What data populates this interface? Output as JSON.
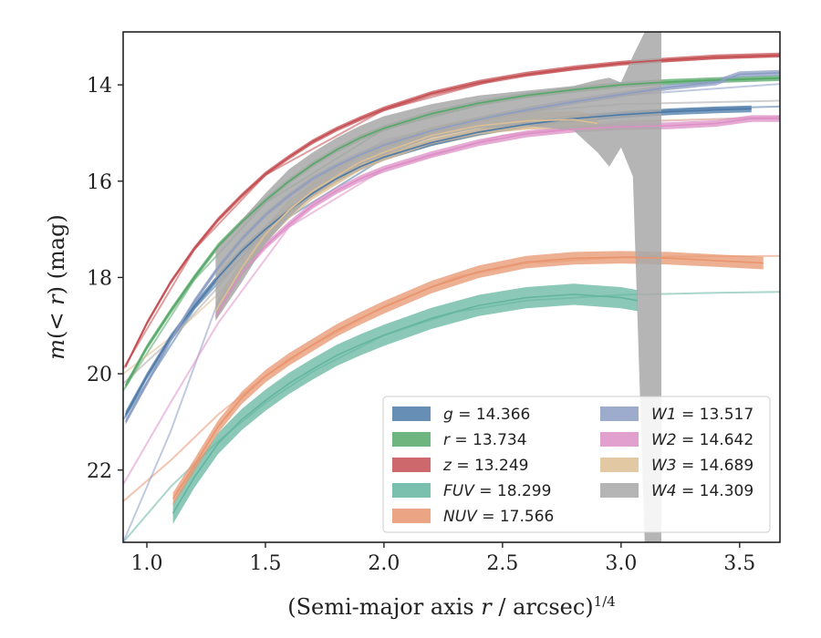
{
  "chart_data": {
    "type": "line",
    "xlabel": "(Semi-major axis r / arcsec)^1/4",
    "ylabel": "m(<r) (mag)",
    "xlim": [
      0.9,
      3.67
    ],
    "ylim": [
      23.5,
      12.9
    ],
    "y_inverted": true,
    "grid": false,
    "legend_position": "lower-right",
    "legend_columns": 2,
    "x_ticks": [
      "1.0",
      "1.5",
      "2.0",
      "2.5",
      "3.0",
      "3.5"
    ],
    "y_ticks": [
      "14",
      "16",
      "18",
      "20",
      "22"
    ],
    "series": [
      {
        "name": "g = 14.366",
        "label_var": "g",
        "label_val": "14.366",
        "color": "#4c7aa8",
        "x": [
          0.91,
          1.0,
          1.1,
          1.2,
          1.3,
          1.4,
          1.5,
          1.6,
          1.7,
          1.8,
          1.9,
          2.0,
          2.2,
          2.4,
          2.6,
          2.8,
          3.0,
          3.2,
          3.4,
          3.55
        ],
        "y": [
          20.85,
          20.05,
          19.25,
          18.6,
          18.0,
          17.45,
          17.0,
          16.6,
          16.25,
          15.95,
          15.7,
          15.5,
          15.2,
          14.98,
          14.82,
          14.7,
          14.62,
          14.56,
          14.52,
          14.5
        ],
        "band": 0.07,
        "model": {
          "x": [
            0.9,
            1.2,
            1.5,
            2.0,
            2.5,
            3.0,
            3.3,
            3.67
          ],
          "y": [
            20.95,
            18.65,
            17.05,
            15.52,
            14.85,
            14.6,
            14.5,
            14.45
          ]
        }
      },
      {
        "name": "r = 13.734",
        "label_var": "r",
        "label_val": "13.734",
        "color": "#55a868",
        "x": [
          0.91,
          1.0,
          1.1,
          1.2,
          1.3,
          1.4,
          1.5,
          1.6,
          1.7,
          1.8,
          1.9,
          2.0,
          2.2,
          2.4,
          2.6,
          2.8,
          3.0,
          3.2,
          3.4,
          3.67
        ],
        "y": [
          20.25,
          19.45,
          18.7,
          18.0,
          17.35,
          16.85,
          16.4,
          16.0,
          15.65,
          15.35,
          15.1,
          14.9,
          14.6,
          14.38,
          14.22,
          14.1,
          14.0,
          13.94,
          13.9,
          13.86
        ],
        "band": 0.06,
        "model": {
          "x": [
            0.9,
            1.2,
            1.5,
            2.0,
            2.5,
            3.0,
            3.3,
            3.67
          ],
          "y": [
            20.35,
            18.05,
            16.45,
            14.92,
            14.3,
            14.0,
            13.92,
            13.86
          ]
        }
      },
      {
        "name": "z = 13.249",
        "label_var": "z",
        "label_val": "13.249",
        "color": "#c44e52",
        "x": [
          0.91,
          1.0,
          1.1,
          1.2,
          1.3,
          1.4,
          1.5,
          1.6,
          1.7,
          1.8,
          1.9,
          2.0,
          2.2,
          2.4,
          2.6,
          2.8,
          3.0,
          3.2,
          3.4,
          3.67
        ],
        "y": [
          19.85,
          18.95,
          18.1,
          17.4,
          16.8,
          16.3,
          15.85,
          15.5,
          15.18,
          14.92,
          14.7,
          14.5,
          14.18,
          13.95,
          13.78,
          13.65,
          13.55,
          13.48,
          13.42,
          13.38
        ],
        "band": 0.05,
        "model": {
          "x": [
            0.9,
            1.2,
            1.5,
            2.0,
            2.5,
            3.0,
            3.3,
            3.67
          ],
          "y": [
            19.9,
            17.42,
            15.87,
            14.52,
            13.86,
            13.56,
            13.47,
            13.4
          ]
        }
      },
      {
        "name": "FUV = 18.299",
        "label_var": "FUV",
        "label_val": "18.299",
        "color": "#64b5a0",
        "x": [
          1.11,
          1.2,
          1.3,
          1.4,
          1.5,
          1.6,
          1.7,
          1.8,
          1.9,
          2.0,
          2.2,
          2.4,
          2.6,
          2.8,
          3.0,
          3.07
        ],
        "y": [
          22.9,
          22.15,
          21.45,
          20.95,
          20.55,
          20.2,
          19.9,
          19.62,
          19.4,
          19.2,
          18.85,
          18.58,
          18.42,
          18.35,
          18.42,
          18.48
        ],
        "band": 0.22,
        "model": {
          "x": [
            0.9,
            1.1,
            1.3,
            1.5,
            1.7,
            2.0,
            2.3,
            2.6,
            3.0,
            3.4,
            3.67
          ],
          "y": [
            23.5,
            22.35,
            21.4,
            20.6,
            19.95,
            19.2,
            18.72,
            18.48,
            18.36,
            18.32,
            18.3
          ]
        }
      },
      {
        "name": "NUV = 17.566",
        "label_var": "NUV",
        "label_val": "17.566",
        "color": "#e8956f",
        "x": [
          1.11,
          1.2,
          1.3,
          1.4,
          1.5,
          1.6,
          1.7,
          1.8,
          1.9,
          2.0,
          2.2,
          2.4,
          2.6,
          2.8,
          3.0,
          3.2,
          3.4,
          3.6
        ],
        "y": [
          22.6,
          21.9,
          21.1,
          20.5,
          20.05,
          19.7,
          19.4,
          19.1,
          18.85,
          18.62,
          18.2,
          17.88,
          17.68,
          17.6,
          17.58,
          17.6,
          17.65,
          17.7
        ],
        "band": 0.13,
        "model": {
          "x": [
            0.9,
            1.1,
            1.3,
            1.5,
            1.7,
            2.0,
            2.3,
            2.6,
            3.0,
            3.4,
            3.67
          ],
          "y": [
            22.65,
            21.8,
            20.85,
            20.05,
            19.4,
            18.6,
            18.0,
            17.7,
            17.58,
            17.56,
            17.55
          ]
        }
      },
      {
        "name": "W1 = 13.517",
        "label_var": "W1",
        "label_val": "13.517",
        "color": "#8c9dc4",
        "x": [
          0.91,
          1.0,
          1.1,
          1.2,
          1.3,
          1.4,
          1.5,
          1.6,
          1.7,
          1.8,
          1.9,
          2.0,
          2.2,
          2.4,
          2.6,
          2.8,
          3.0,
          3.2,
          3.4,
          3.5,
          3.67
        ],
        "y": [
          21.0,
          20.2,
          19.3,
          18.5,
          17.8,
          17.2,
          16.7,
          16.3,
          15.95,
          15.68,
          15.45,
          15.25,
          14.95,
          14.72,
          14.52,
          14.35,
          14.2,
          14.05,
          13.95,
          13.78,
          13.75
        ],
        "band": 0.06,
        "model": {
          "x": [
            0.9,
            1.1,
            1.3,
            1.6,
            2.0,
            2.5,
            3.0,
            3.67
          ],
          "y": [
            23.5,
            21.2,
            18.5,
            16.6,
            15.3,
            14.62,
            14.22,
            13.98
          ]
        }
      },
      {
        "name": "W2 = 14.642",
        "label_var": "W2",
        "label_val": "14.642",
        "color": "#dd8fc6",
        "x": [
          1.29,
          1.35,
          1.4,
          1.5,
          1.6,
          1.7,
          1.8,
          1.9,
          2.0,
          2.2,
          2.4,
          2.6,
          2.8,
          3.0,
          3.2,
          3.4,
          3.55,
          3.67
        ],
        "y": [
          18.8,
          18.3,
          17.9,
          17.35,
          16.9,
          16.5,
          16.2,
          15.95,
          15.75,
          15.45,
          15.2,
          15.02,
          14.92,
          14.87,
          14.85,
          14.8,
          14.7,
          14.7
        ],
        "band": 0.07,
        "model": {
          "x": [
            0.9,
            1.1,
            1.3,
            1.6,
            2.0,
            2.5,
            3.0,
            3.67
          ],
          "y": [
            22.3,
            20.6,
            18.95,
            16.95,
            15.75,
            15.05,
            14.78,
            14.66
          ]
        }
      },
      {
        "name": "W3 = 14.689",
        "label_var": "W3",
        "label_val": "14.689",
        "color": "#ddbf94",
        "x": [
          1.29,
          1.4,
          1.5,
          1.6,
          1.7,
          1.8,
          1.9,
          2.0,
          2.2,
          2.4,
          2.6,
          2.8,
          2.9
        ],
        "y": [
          18.7,
          17.8,
          17.1,
          16.6,
          16.2,
          15.9,
          15.6,
          15.4,
          15.05,
          14.85,
          14.75,
          14.72,
          14.8
        ],
        "band": 0.18,
        "model": {
          "x": [
            0.9,
            1.1,
            1.3,
            1.6,
            2.0,
            2.5,
            3.0,
            3.67
          ],
          "y": [
            20.0,
            19.25,
            18.35,
            16.6,
            15.45,
            14.95,
            14.75,
            14.69
          ]
        }
      },
      {
        "name": "W4 = 14.309",
        "label_var": "W4",
        "label_val": "14.309",
        "color": "#a8a8a8",
        "x": [
          1.29,
          1.4,
          1.5,
          1.6,
          1.7,
          1.8,
          1.9,
          2.0,
          2.2,
          2.4,
          2.6,
          2.8,
          2.9,
          2.95,
          3.0,
          3.05,
          3.1,
          3.15,
          3.17
        ],
        "y_low": [
          18.9,
          18.1,
          17.3,
          16.75,
          16.3,
          15.95,
          15.65,
          15.45,
          15.1,
          14.9,
          14.85,
          14.95,
          15.4,
          15.7,
          15.3,
          15.9,
          23.5,
          23.5,
          23.5
        ],
        "y_high": [
          17.4,
          16.8,
          16.25,
          15.75,
          15.4,
          15.1,
          14.85,
          14.65,
          14.4,
          14.22,
          14.12,
          14.02,
          13.9,
          13.85,
          13.95,
          13.4,
          12.9,
          12.9,
          12.9
        ],
        "model": {
          "x": [
            0.9,
            1.1,
            1.3,
            1.6,
            2.0,
            2.5,
            3.0,
            3.67
          ],
          "y": [
            20.2,
            19.3,
            18.2,
            16.4,
            15.15,
            14.6,
            14.4,
            14.33
          ]
        }
      }
    ]
  }
}
